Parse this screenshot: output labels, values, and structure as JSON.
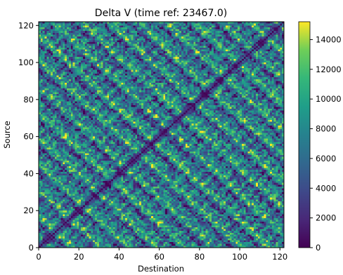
{
  "chart_data": {
    "type": "heatmap",
    "title": "Delta V (time ref: 23467.0)",
    "xlabel": "Destination",
    "ylabel": "Source",
    "x_range": [
      0,
      122
    ],
    "y_range": [
      0,
      122
    ],
    "x_ticks": [
      0,
      20,
      40,
      60,
      80,
      100,
      120
    ],
    "y_ticks": [
      0,
      20,
      40,
      60,
      80,
      100,
      120
    ],
    "grid_size": 122,
    "diagonal_value": 0,
    "colorscale": "viridis",
    "colorbar": {
      "range": [
        0,
        15200
      ],
      "ticks": [
        0,
        2000,
        4000,
        6000,
        8000,
        10000,
        12000,
        14000
      ]
    },
    "note_values": "Matrix is symmetric with zero diagonal; cell values span roughly 0–15200 and alternate rapidly between high (yellow) and low (blue/purple) values."
  }
}
